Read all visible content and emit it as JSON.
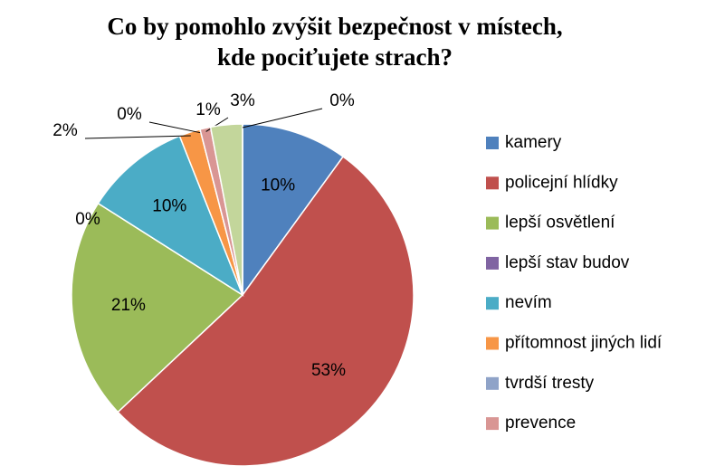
{
  "chart_data": {
    "type": "pie",
    "title": "Co by pomohlo zvýšit bezpečnost v místech, kde pociťujete strach?",
    "categories": [
      "kamery",
      "policejní hlídky",
      "lepší osvětlení",
      "lepší stav budov",
      "nevím",
      "přítomnost jiných lidí",
      "tvrdší tresty",
      "prevence",
      null,
      null
    ],
    "values": [
      10,
      53,
      21,
      0,
      10,
      2,
      0,
      1,
      3,
      0
    ],
    "value_labels": [
      "10%",
      "53%",
      "21%",
      "0%",
      "10%",
      "2%",
      "0%",
      "1%",
      "3%",
      "0%"
    ],
    "colors": [
      "#4f81bd",
      "#c0504d",
      "#9bbb59",
      "#8064a2",
      "#4bacc6",
      "#f79646",
      "#8fa3c8",
      "#d99694",
      "#c3d69b",
      "#b3a2c7"
    ],
    "legend": "right"
  }
}
